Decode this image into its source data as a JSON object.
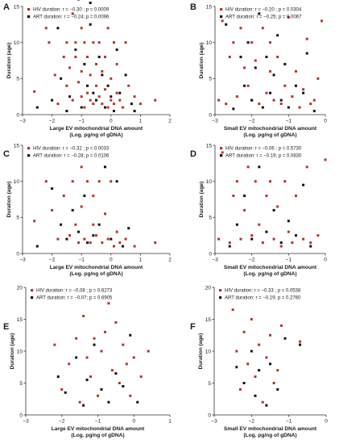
{
  "colors": {
    "hiv": "#b5342a",
    "art": "#111111"
  },
  "legend_labels": {
    "hiv": "HIV duration",
    "art": "ART duration"
  },
  "chart_data": [
    {
      "type": "scatter",
      "panel": "A",
      "grid": false,
      "legend_placement": "top-left",
      "xlabel": "Large EV mitochondrial DNA amount",
      "xlabel2": "(Log. pg/ng of gDNA)",
      "ylabel": "Duration (age)",
      "xlim": [
        -3,
        2
      ],
      "ylim": [
        0,
        15
      ],
      "xticks": [
        "−3",
        "−2",
        "−1",
        "0",
        "1",
        "2"
      ],
      "yticks": [
        "0",
        "5",
        "10",
        "15"
      ],
      "stats": {
        "hiv": "r = −0.30 ; p = 0.0009",
        "art": "r = −0.24; p = 0.0096"
      },
      "series": [
        {
          "key": "hiv",
          "x": [
            -2.6,
            -2.2,
            -2.1,
            -1.9,
            -1.8,
            -1.6,
            -1.5,
            -1.5,
            -1.4,
            -1.3,
            -1.3,
            -1.2,
            -1.2,
            -1.1,
            -1.0,
            -1.0,
            -1.0,
            -0.9,
            -0.9,
            -0.8,
            -0.8,
            -0.7,
            -0.7,
            -0.6,
            -0.6,
            -0.5,
            -0.5,
            -0.4,
            -0.4,
            -0.3,
            -0.3,
            -0.2,
            -0.2,
            -0.1,
            -0.1,
            0.0,
            0.0,
            0.1,
            0.1,
            0.2,
            0.2,
            0.3,
            0.4,
            0.5,
            0.6,
            0.8,
            1.0,
            1.5
          ],
          "y": [
            3.2,
            12.0,
            10.0,
            5.5,
            1.5,
            8.0,
            4.0,
            10.0,
            6.5,
            14.0,
            2.0,
            8.0,
            10.0,
            4.5,
            12.0,
            2.5,
            6.0,
            1.0,
            10.0,
            3.0,
            8.0,
            2.0,
            5.5,
            10.0,
            1.5,
            4.0,
            7.0,
            2.5,
            10.0,
            1.5,
            6.0,
            3.5,
            8.0,
            1.0,
            12.0,
            2.0,
            5.0,
            10.0,
            1.5,
            3.0,
            7.0,
            2.0,
            1.0,
            10.0,
            4.0,
            2.5,
            1.5,
            2.0
          ]
        },
        {
          "key": "art",
          "x": [
            -2.5,
            -2.0,
            -1.8,
            -1.7,
            -1.5,
            -1.4,
            -1.2,
            -1.1,
            -1.0,
            -0.9,
            -0.8,
            -0.7,
            -0.7,
            -0.6,
            -0.5,
            -0.4,
            -0.3,
            -0.2,
            -0.1,
            0.0,
            0.1,
            0.2,
            0.3,
            0.5,
            0.7,
            0.8
          ],
          "y": [
            1.0,
            2.0,
            12.0,
            5.0,
            0.5,
            2.5,
            9.0,
            16.0,
            1.0,
            7.0,
            4.0,
            12.5,
            15.5,
            3.0,
            2.0,
            8.0,
            5.5,
            1.0,
            4.0,
            2.5,
            0.5,
            9.0,
            3.0,
            5.5,
            1.5,
            0.5
          ]
        }
      ]
    },
    {
      "type": "scatter",
      "panel": "B",
      "grid": false,
      "legend_placement": "top-left",
      "xlabel": "Small EV mitochondrial DNA amount",
      "xlabel2": "(Log. pg/ng of gDNA)",
      "ylabel": "Duration (age)",
      "xlim": [
        -3,
        0
      ],
      "ylim": [
        0,
        15
      ],
      "xticks": [
        "−3",
        "−2",
        "−1",
        "0"
      ],
      "yticks": [
        "0",
        "5",
        "10",
        "15"
      ],
      "stats": {
        "hiv": "r = −0.20 ; p = 0.0304",
        "art": "r = −0.25; p = 0.0067"
      },
      "series": [
        {
          "key": "hiv",
          "x": [
            -2.9,
            -2.8,
            -2.7,
            -2.6,
            -2.5,
            -2.4,
            -2.3,
            -2.2,
            -2.1,
            -2.0,
            -2.0,
            -1.9,
            -1.8,
            -1.7,
            -1.6,
            -1.5,
            -1.5,
            -1.4,
            -1.3,
            -1.2,
            -1.1,
            -1.0,
            -0.9,
            -0.8,
            -0.7,
            -0.6,
            -0.5,
            -0.4,
            -0.3,
            -0.2,
            -0.1
          ],
          "y": [
            2.0,
            13.0,
            1.5,
            8.0,
            10.0,
            2.5,
            12.0,
            6.5,
            4.0,
            10.0,
            2.0,
            7.5,
            1.5,
            12.0,
            3.0,
            10.0,
            6.0,
            2.0,
            8.0,
            1.5,
            4.0,
            13.5,
            2.5,
            6.0,
            1.0,
            3.5,
            10.5,
            1.5,
            2.0,
            5.0,
            13.0
          ]
        },
        {
          "key": "art",
          "x": [
            -2.7,
            -2.5,
            -2.3,
            -2.2,
            -2.1,
            -2.0,
            -1.9,
            -1.8,
            -1.7,
            -1.6,
            -1.5,
            -1.4,
            -1.3,
            -1.2,
            -1.1,
            -1.0,
            -0.8,
            -0.6,
            -0.5,
            -0.3
          ],
          "y": [
            12.5,
            0.8,
            8.0,
            4.0,
            10.0,
            2.0,
            6.5,
            14.0,
            1.0,
            8.0,
            3.0,
            5.5,
            11.0,
            2.0,
            7.0,
            1.0,
            4.0,
            3.0,
            8.5,
            0.5
          ]
        }
      ]
    },
    {
      "type": "scatter",
      "panel": "C",
      "grid": false,
      "legend_placement": "top-left",
      "xlabel": "Large EV mitochondrial DNA amount",
      "xlabel2": "(Log. pg/ng of gDNA)",
      "ylabel": "Duration (age)",
      "xlim": [
        -3,
        2
      ],
      "ylim": [
        0,
        15
      ],
      "xticks": [
        "−3",
        "−2",
        "−1",
        "0",
        "1",
        "2"
      ],
      "yticks": [
        "0",
        "5",
        "10",
        "15"
      ],
      "stats": {
        "hiv": "r = −0.32 ; p = 0.0033",
        "art": "r = −0.28; p = 0.0106"
      },
      "series": [
        {
          "key": "hiv",
          "x": [
            -2.6,
            -2.2,
            -2.0,
            -1.8,
            -1.6,
            -1.4,
            -1.3,
            -1.2,
            -1.1,
            -1.0,
            -1.0,
            -0.9,
            -0.8,
            -0.7,
            -0.6,
            -0.6,
            -0.5,
            -0.4,
            -0.3,
            -0.2,
            -0.1,
            0.0,
            0.1,
            0.2,
            0.3,
            0.5,
            0.8,
            1.5
          ],
          "y": [
            4.5,
            10.0,
            6.0,
            2.0,
            8.0,
            2.5,
            10.0,
            4.0,
            1.5,
            12.0,
            6.5,
            2.0,
            10.0,
            1.5,
            4.0,
            8.0,
            2.5,
            10.0,
            1.5,
            5.5,
            2.0,
            10.0,
            1.0,
            3.0,
            1.5,
            2.0,
            1.0,
            1.5
          ]
        },
        {
          "key": "art",
          "x": [
            -2.5,
            -2.0,
            -1.7,
            -1.5,
            -1.3,
            -1.1,
            -0.9,
            -0.8,
            -0.6,
            -0.4,
            -0.2,
            0.0,
            0.2,
            0.4,
            0.6
          ],
          "y": [
            1.0,
            9.0,
            4.0,
            2.0,
            6.0,
            3.0,
            8.0,
            1.5,
            2.5,
            4.0,
            12.0,
            2.0,
            10.0,
            1.0,
            3.5
          ]
        }
      ]
    },
    {
      "type": "scatter",
      "panel": "D",
      "grid": false,
      "legend_placement": "top-left",
      "xlabel": "Small EV mitochondrial DNA amount",
      "xlabel2": "(Log. pg/ng of gDNA)",
      "ylabel": "Duration (age)",
      "xlim": [
        -3,
        0
      ],
      "ylim": [
        0,
        15
      ],
      "xticks": [
        "−3",
        "−2",
        "−1",
        "0"
      ],
      "yticks": [
        "0",
        "5",
        "10",
        "15"
      ],
      "stats": {
        "hiv": "r = −0.06 ; p = 0.5730",
        "art": "r = −0.19; p = 0.0830"
      },
      "series": [
        {
          "key": "hiv",
          "x": [
            -2.9,
            -2.8,
            -2.6,
            -2.5,
            -2.4,
            -2.3,
            -2.2,
            -2.1,
            -2.0,
            -1.9,
            -1.8,
            -1.7,
            -1.6,
            -1.5,
            -1.4,
            -1.3,
            -1.2,
            -1.1,
            -1.0,
            -0.9,
            -0.8,
            -0.6,
            -0.5,
            -0.4,
            -0.2,
            0.0
          ],
          "y": [
            2.0,
            14.0,
            1.5,
            8.0,
            10.0,
            2.0,
            6.0,
            12.0,
            2.5,
            10.0,
            4.0,
            1.5,
            8.0,
            10.0,
            2.0,
            6.5,
            1.0,
            10.0,
            3.0,
            1.5,
            8.0,
            2.0,
            12.0,
            1.5,
            2.5,
            13.0
          ]
        },
        {
          "key": "art",
          "x": [
            -2.6,
            -2.4,
            -2.2,
            -2.0,
            -1.8,
            -1.6,
            -1.4,
            -1.2,
            -1.0,
            -0.8,
            -0.6,
            -0.4
          ],
          "y": [
            1.0,
            4.0,
            8.0,
            2.0,
            12.0,
            3.0,
            6.0,
            1.5,
            4.5,
            2.5,
            9.5,
            1.0
          ]
        }
      ]
    },
    {
      "type": "scatter",
      "panel": "E",
      "grid": false,
      "legend_placement": "top-left",
      "xlabel": "Large EV mitochondrial DNA amount",
      "xlabel2": "(Log. pg/ng of gDNA)",
      "ylabel": "Duration (age)",
      "xlim": [
        -3,
        1
      ],
      "ylim": [
        0,
        20
      ],
      "xticks": [
        "−3",
        "−2",
        "−1",
        "0",
        "1"
      ],
      "yticks": [
        "0",
        "5",
        "10",
        "15",
        "20"
      ],
      "stats": {
        "hiv": "r = −0.08 ; p = 0.6273",
        "art": "r = −0.07; p = 0.6905"
      },
      "series": [
        {
          "key": "hiv",
          "x": [
            -2.2,
            -2.0,
            -1.8,
            -1.6,
            -1.5,
            -1.4,
            -1.3,
            -1.2,
            -1.1,
            -1.0,
            -0.9,
            -0.8,
            -0.7,
            -0.6,
            -0.5,
            -0.4,
            -0.3,
            -0.2,
            -0.1,
            0.0,
            0.2,
            0.4
          ],
          "y": [
            11.0,
            4.0,
            8.0,
            12.0,
            2.0,
            15.5,
            9.0,
            6.0,
            12.0,
            3.0,
            10.0,
            13.0,
            17.5,
            7.0,
            14.5,
            5.0,
            11.0,
            8.0,
            3.0,
            9.0,
            6.0,
            10.0
          ]
        },
        {
          "key": "art",
          "x": [
            -2.1,
            -1.9,
            -1.6,
            -1.4,
            -1.3,
            -1.1,
            -0.9,
            -0.7,
            -0.5,
            -0.3,
            -0.1,
            0.1
          ],
          "y": [
            6.0,
            3.5,
            9.0,
            1.5,
            5.5,
            11.0,
            4.0,
            2.0,
            6.5,
            4.5,
            12.5,
            2.0
          ]
        }
      ]
    },
    {
      "type": "scatter",
      "panel": "F",
      "grid": false,
      "legend_placement": "top-left",
      "xlabel": "Small EV mitochondrial DNA amount",
      "xlabel2": "(Log. pg/ng of gDNA)",
      "ylabel": "Duration (age)",
      "xlim": [
        -3,
        0
      ],
      "ylim": [
        0,
        20
      ],
      "xticks": [
        "−3",
        "−2",
        "−1",
        "0"
      ],
      "yticks": [
        "0",
        "5",
        "10",
        "15",
        "20"
      ],
      "stats": {
        "hiv": "r = −0.33 ; p = 0.0538",
        "art": "r = −0.19; p = 0.2760"
      },
      "series": [
        {
          "key": "hiv",
          "x": [
            -2.5,
            -2.4,
            -2.3,
            -2.2,
            -2.1,
            -2.0,
            -1.9,
            -1.8,
            -1.7,
            -1.6,
            -1.5,
            -1.4,
            -1.3,
            -1.2,
            -0.7
          ],
          "y": [
            16.5,
            10.0,
            4.0,
            13.0,
            8.0,
            15.0,
            6.0,
            11.0,
            2.0,
            9.0,
            12.5,
            5.0,
            7.0,
            14.0,
            11.5
          ]
        },
        {
          "key": "art",
          "x": [
            -2.4,
            -2.2,
            -2.0,
            -1.9,
            -1.8,
            -1.6,
            -1.5,
            -1.3,
            -1.1,
            -0.7
          ],
          "y": [
            7.5,
            5.0,
            10.0,
            3.0,
            7.0,
            1.5,
            8.0,
            4.0,
            12.0,
            11.0
          ]
        }
      ]
    }
  ]
}
